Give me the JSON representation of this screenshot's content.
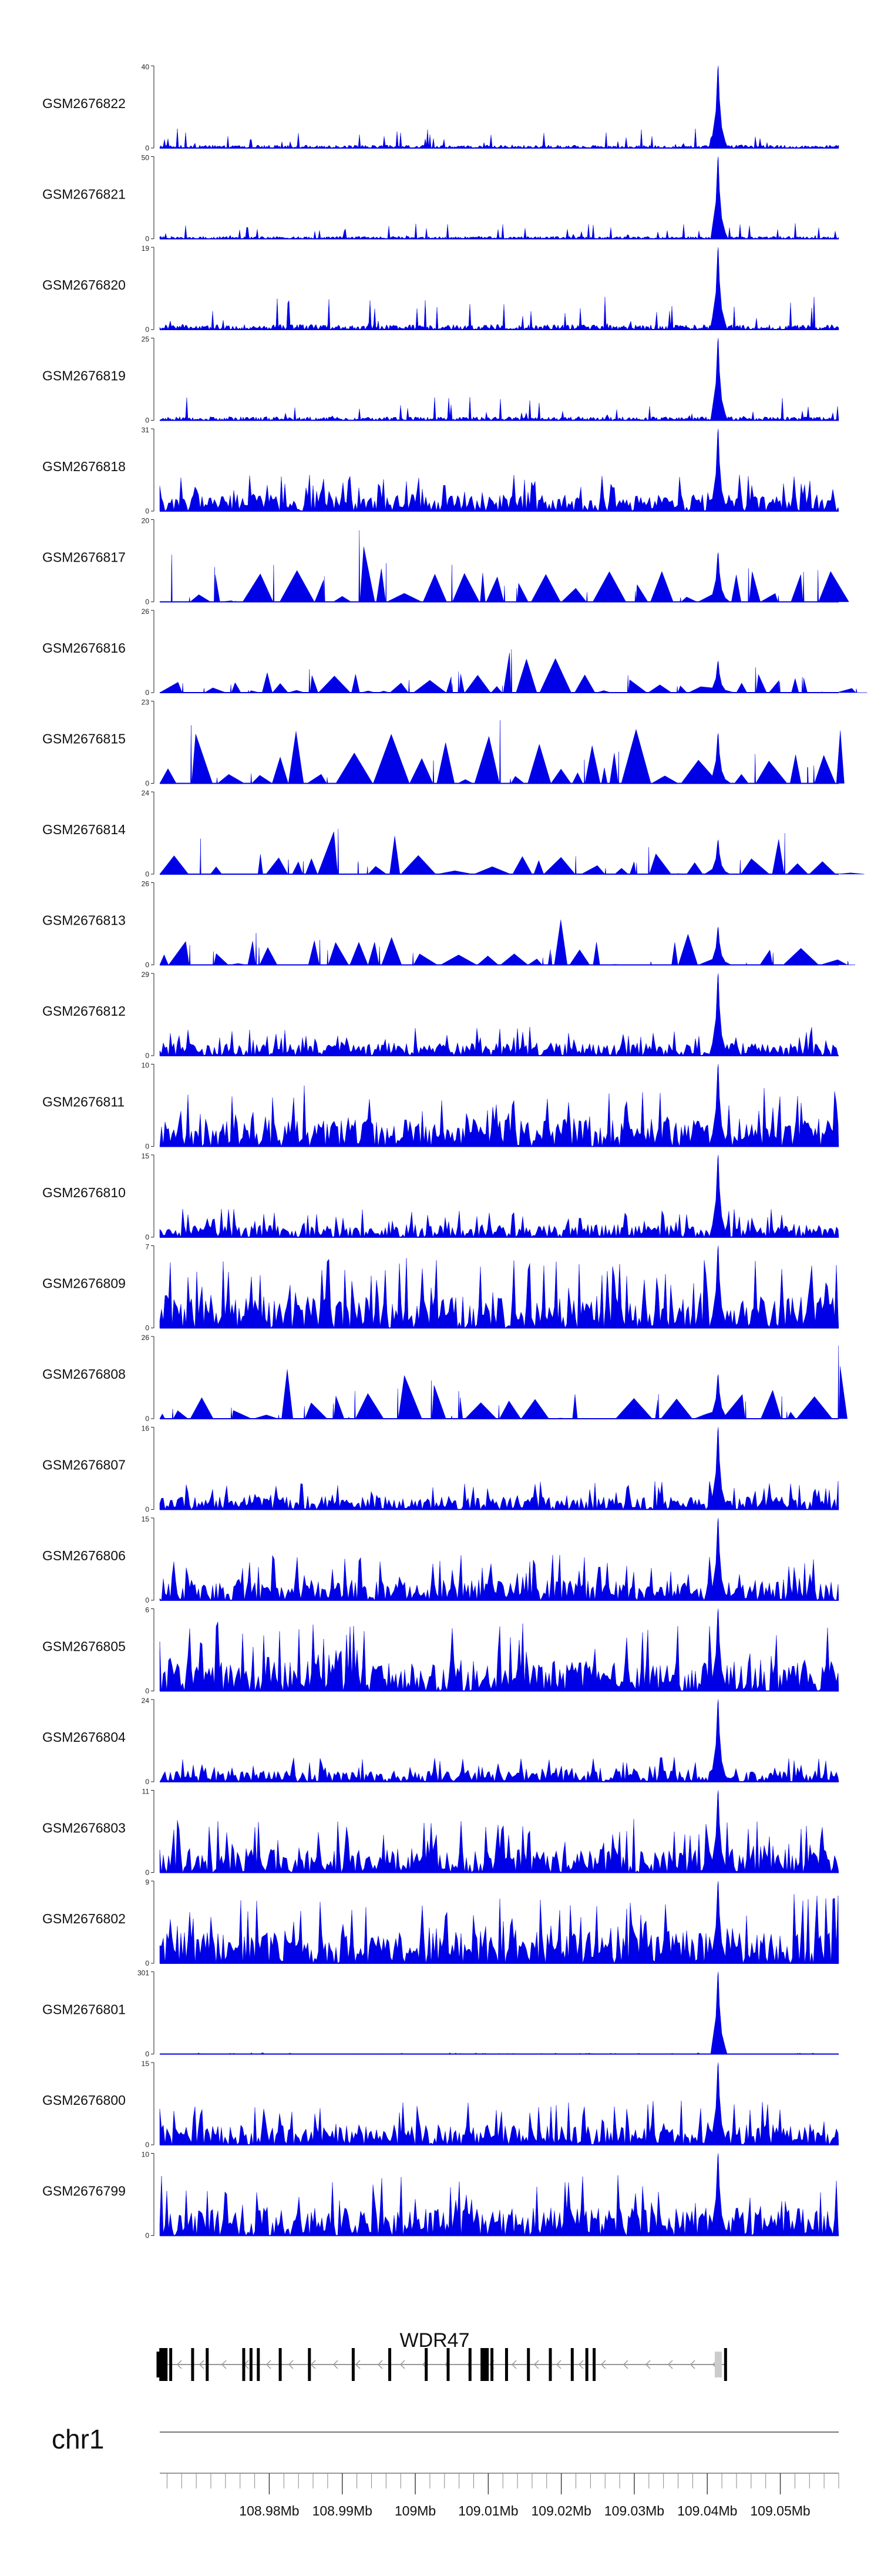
{
  "chart_data": {
    "type": "area",
    "chromosome": "chr1",
    "region_mb": [
      108.965,
      109.058
    ],
    "x_ticks": [
      {
        "value": 108.98,
        "label": "108.98Mb"
      },
      {
        "value": 108.99,
        "label": "108.99Mb"
      },
      {
        "value": 109.0,
        "label": "109Mb"
      },
      {
        "value": 109.01,
        "label": "109.01Mb"
      },
      {
        "value": 109.02,
        "label": "109.02Mb"
      },
      {
        "value": 109.03,
        "label": "109.03Mb"
      },
      {
        "value": 109.04,
        "label": "109.04Mb"
      },
      {
        "value": 109.05,
        "label": "109.05Mb"
      }
    ],
    "fill_color": "#0000e6",
    "peak_position_mb": 109.0415,
    "tracks": [
      {
        "name": "GSM2676822",
        "ymax": 40,
        "ymin": 0,
        "peak": 40,
        "noise": 0.15,
        "style": "dense"
      },
      {
        "name": "GSM2676821",
        "ymax": 50,
        "ymin": 0,
        "peak": 50,
        "noise": 0.12,
        "style": "dense"
      },
      {
        "name": "GSM2676820",
        "ymax": 19,
        "ymin": 0,
        "peak": 19,
        "noise": 0.25,
        "style": "dense"
      },
      {
        "name": "GSM2676819",
        "ymax": 25,
        "ymin": 0,
        "peak": 25,
        "noise": 0.18,
        "style": "dense"
      },
      {
        "name": "GSM2676818",
        "ymax": 31,
        "ymin": 0,
        "peak": 31,
        "noise": 0.45,
        "style": "spiky"
      },
      {
        "name": "GSM2676817",
        "ymax": 20,
        "ymin": 0,
        "peak": 12,
        "noise": 0.85,
        "style": "triangle"
      },
      {
        "name": "GSM2676816",
        "ymax": 26,
        "ymin": 0,
        "peak": 10,
        "noise": 0.55,
        "style": "triangle"
      },
      {
        "name": "GSM2676815",
        "ymax": 23,
        "ymin": 0,
        "peak": 14,
        "noise": 0.85,
        "style": "triangle"
      },
      {
        "name": "GSM2676814",
        "ymax": 24,
        "ymin": 0,
        "peak": 10,
        "noise": 0.55,
        "style": "triangle"
      },
      {
        "name": "GSM2676813",
        "ymax": 26,
        "ymin": 0,
        "peak": 12,
        "noise": 0.7,
        "style": "triangle"
      },
      {
        "name": "GSM2676812",
        "ymax": 29,
        "ymin": 0,
        "peak": 29,
        "noise": 0.35,
        "style": "spiky"
      },
      {
        "name": "GSM2676811",
        "ymax": 10,
        "ymin": 0,
        "peak": 10,
        "noise": 0.75,
        "style": "spiky"
      },
      {
        "name": "GSM2676810",
        "ymax": 15,
        "ymin": 0,
        "peak": 15,
        "noise": 0.35,
        "style": "spiky"
      },
      {
        "name": "GSM2676809",
        "ymax": 7,
        "ymin": 0,
        "peak": 7,
        "noise": 0.85,
        "style": "spiky"
      },
      {
        "name": "GSM2676808",
        "ymax": 26,
        "ymin": 0,
        "peak": 14,
        "noise": 0.7,
        "style": "triangle"
      },
      {
        "name": "GSM2676807",
        "ymax": 16,
        "ymin": 0,
        "peak": 16,
        "noise": 0.35,
        "style": "spiky"
      },
      {
        "name": "GSM2676806",
        "ymax": 15,
        "ymin": 0,
        "peak": 15,
        "noise": 0.55,
        "style": "spiky"
      },
      {
        "name": "GSM2676805",
        "ymax": 6,
        "ymin": 0,
        "peak": 6,
        "noise": 0.85,
        "style": "spiky"
      },
      {
        "name": "GSM2676804",
        "ymax": 24,
        "ymin": 0,
        "peak": 24,
        "noise": 0.3,
        "style": "spiky"
      },
      {
        "name": "GSM2676803",
        "ymax": 11,
        "ymin": 0,
        "peak": 11,
        "noise": 0.65,
        "style": "spiky"
      },
      {
        "name": "GSM2676802",
        "ymax": 9,
        "ymin": 0,
        "peak": 9,
        "noise": 0.85,
        "style": "spiky"
      },
      {
        "name": "GSM2676801",
        "ymax": 301,
        "ymin": 0,
        "peak": 301,
        "noise": 0.01,
        "style": "dense"
      },
      {
        "name": "GSM2676800",
        "ymax": 15,
        "ymin": 0,
        "peak": 15,
        "noise": 0.55,
        "style": "spiky"
      },
      {
        "name": "GSM2676799",
        "ymax": 10,
        "ymin": 0,
        "peak": 10,
        "noise": 0.75,
        "style": "spiky"
      }
    ]
  },
  "gene": {
    "name": "WDR47",
    "strand": "-",
    "start_mb": 108.965,
    "end_mb": 109.0425,
    "exons_mb": [
      108.9655,
      108.9665,
      108.9695,
      108.9715,
      108.9765,
      108.9775,
      108.9785,
      108.9815,
      108.9855,
      108.9915,
      108.9965,
      109.0015,
      109.0045,
      109.0075,
      109.0095,
      109.0105,
      109.0125,
      109.0155,
      109.0185,
      109.0215,
      109.0235,
      109.0245,
      109.0425
    ],
    "thick_exons_mb": [
      108.9655,
      109.0095
    ],
    "utr_end_mb": [
      109.0415,
      109.0425
    ]
  }
}
